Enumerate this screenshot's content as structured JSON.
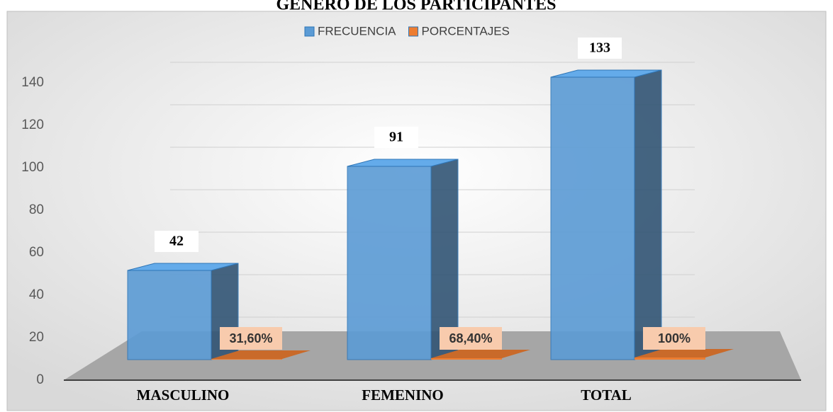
{
  "chart_data": {
    "type": "bar3d",
    "title": "GÉNERO DE LOS PARTICIPANTES",
    "categories": [
      "MASCULINO",
      "FEMENINO",
      "TOTAL"
    ],
    "series": [
      {
        "name": "FRECUENCIA",
        "color": "#5b9bd5",
        "values": [
          42,
          91,
          133
        ]
      },
      {
        "name": "PORCENTAJES",
        "color": "#ed7d31",
        "values": [
          0.316,
          0.684,
          1
        ],
        "value_labels": [
          "31,60%",
          "68,40%",
          "100%"
        ]
      }
    ],
    "ylim": [
      0,
      140
    ],
    "yticks": [
      0,
      20,
      40,
      60,
      80,
      100,
      120,
      140
    ],
    "grid": true,
    "legend": "top"
  }
}
